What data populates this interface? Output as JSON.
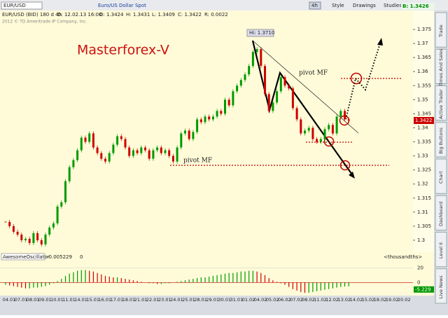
{
  "toolbar": {
    "symbol": "EUR/USD",
    "description": "Euro/US Dollar Spot",
    "period": "4h",
    "style": "Style",
    "drawings": "Drawings",
    "studies": "Studies",
    "bid": "B: 1.3426"
  },
  "info_bar": {
    "instrument": "EUR/USD (BID) 180 d 4h",
    "date": "D: 12.02.13 16:00",
    "open": "O: 1.3424",
    "high": "H: 1.3431",
    "low": "L: 1.3409",
    "close": "C: 1.3422",
    "range": "R: 0.0022"
  },
  "copyright": "2012 © TD Ameritrade IP Company, Inc.",
  "side_tabs": [
    "Trade",
    "Times And Sales",
    "Active Trader",
    "Big Buttons",
    "Chart",
    "Dashboard",
    "Level II",
    "Live News"
  ],
  "chart_data": [
    {
      "type": "candlestick",
      "title": "Masterforex-V",
      "annotations": [
        "pivot MF",
        "pivot MF",
        "Hi: 1.3710"
      ],
      "last_price": "1.3422",
      "up_color": "#009900",
      "down_color": "#cc0000",
      "x_labels": [
        "04.01",
        "07.01",
        "08.01",
        "09.01",
        "10.01",
        "11.01",
        "14.01",
        "15.01",
        "16.01",
        "17.01",
        "18.01",
        "21.01",
        "22.01",
        "23.01",
        "24.01",
        "25.01",
        "28.01",
        "29.01",
        "30.01",
        "31.01",
        "01.02",
        "04.02",
        "05.02",
        "06.02",
        "07.02",
        "08.02",
        "11.02",
        "12.02",
        "13.02",
        "14.02",
        "15.02",
        "18.02",
        "19.02",
        "20.02"
      ],
      "values": [
        1.3065,
        1.305,
        1.303,
        1.302,
        1.3,
        1.3005,
        1.299,
        1.3025,
        1.3,
        1.2985,
        1.302,
        1.3045,
        1.306,
        1.312,
        1.3135,
        1.321,
        1.326,
        1.3285,
        1.332,
        1.3365,
        1.335,
        1.338,
        1.333,
        1.331,
        1.329,
        1.328,
        1.331,
        1.334,
        1.337,
        1.336,
        1.333,
        1.33,
        1.332,
        1.331,
        1.333,
        1.332,
        1.329,
        1.332,
        1.333,
        1.331,
        1.332,
        1.33,
        1.328,
        1.333,
        1.338,
        1.339,
        1.336,
        1.3385,
        1.343,
        1.342,
        1.344,
        1.343,
        1.344,
        1.346,
        1.345,
        1.35,
        1.348,
        1.353,
        1.355,
        1.357,
        1.359,
        1.362,
        1.367,
        1.368,
        1.362,
        1.352,
        1.346,
        1.349,
        1.353,
        1.358,
        1.355,
        1.354,
        1.347,
        1.343,
        1.338,
        1.339,
        1.34,
        1.336,
        1.335,
        1.336,
        1.3395,
        1.341,
        1.338,
        1.344,
        1.346,
        1.343,
        1.3426
      ],
      "ylim": [
        1.2965,
        1.3775
      ],
      "yticks": [
        1.3,
        1.305,
        1.31,
        1.315,
        1.32,
        1.325,
        1.33,
        1.335,
        1.34,
        1.345,
        1.35,
        1.355,
        1.36,
        1.365,
        1.37,
        1.375
      ],
      "grid": false
    },
    {
      "type": "bar",
      "title": "AwesomeOscillator",
      "current": "-0.005229",
      "param": "0",
      "units": "<thousandths>",
      "last_label": "-5.229",
      "up_color": "#009900",
      "down_color": "#cc0000",
      "values": [
        -3,
        -4,
        -5,
        -6,
        -7,
        -8,
        -8,
        -7,
        -7,
        -6,
        -5,
        -3,
        -1,
        2,
        5,
        9,
        12,
        14,
        16,
        17,
        17,
        16,
        15,
        13,
        11,
        9,
        8,
        7,
        7,
        6,
        5,
        4,
        3,
        2,
        1,
        0,
        -1,
        -1,
        -2,
        -2,
        -1,
        -1,
        0,
        1,
        2,
        3,
        4,
        5,
        6,
        7,
        7,
        8,
        9,
        10,
        11,
        12,
        13,
        13,
        14,
        15,
        15,
        16,
        16,
        15,
        13,
        10,
        6,
        3,
        1,
        -1,
        -3,
        -6,
        -9,
        -11,
        -13,
        -14,
        -14,
        -13,
        -12,
        -11,
        -10,
        -9,
        -8,
        -7,
        -6,
        -5.5,
        -5.229
      ],
      "ylim": [
        -15,
        28
      ],
      "yticks": [
        0,
        20
      ]
    }
  ]
}
